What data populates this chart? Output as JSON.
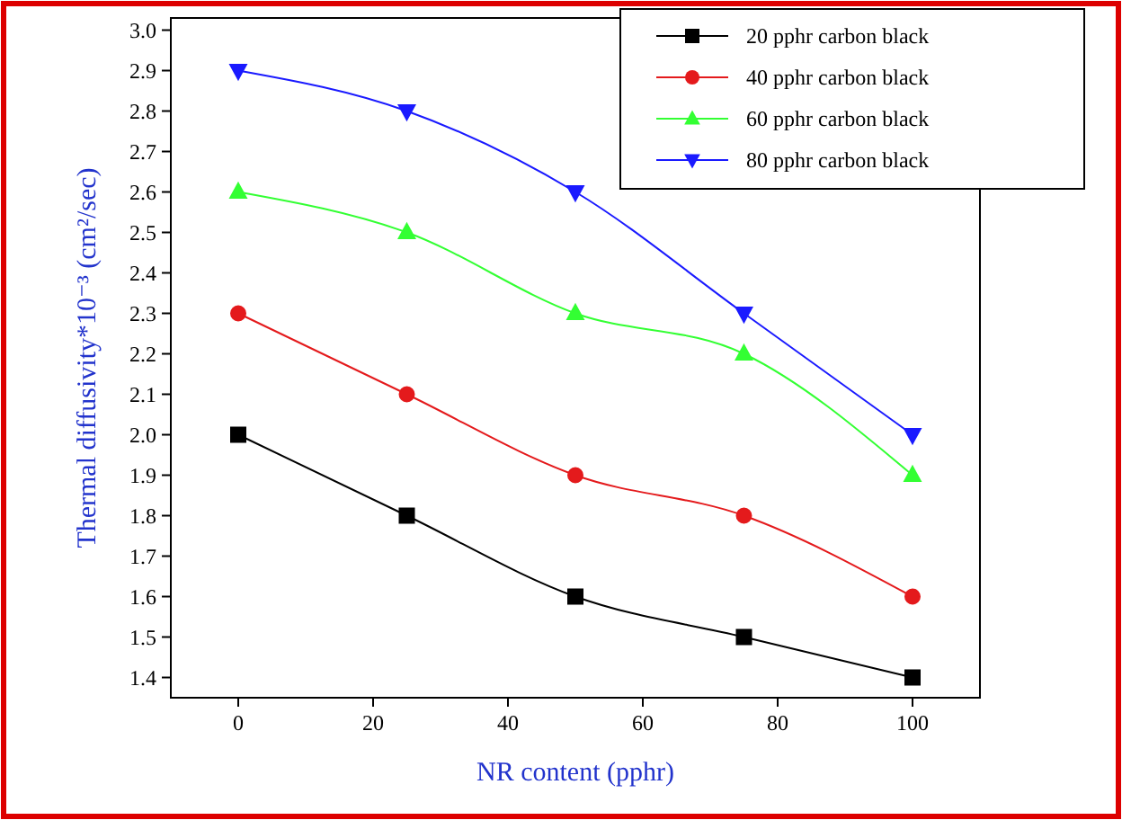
{
  "chart_data": {
    "type": "line",
    "xlabel": "NR content (pphr)",
    "ylabel": "Thermal diffusivity*10⁻³ (cm²/sec)",
    "x": [
      0,
      25,
      50,
      75,
      100
    ],
    "series": [
      {
        "name": "20 pphr carbon black",
        "color": "#000000",
        "marker": "square",
        "values": [
          2.0,
          1.8,
          1.6,
          1.5,
          1.4
        ]
      },
      {
        "name": "40 pphr carbon black",
        "color": "#e41a1c",
        "marker": "circle",
        "values": [
          2.3,
          2.1,
          1.9,
          1.8,
          1.6
        ]
      },
      {
        "name": "60 pphr carbon black",
        "color": "#33ff33",
        "marker": "triangle",
        "values": [
          2.6,
          2.5,
          2.3,
          2.2,
          1.9
        ]
      },
      {
        "name": "80 pphr carbon black",
        "color": "#1a1aff",
        "marker": "triangle-down",
        "values": [
          2.9,
          2.8,
          2.6,
          2.3,
          2.0
        ]
      }
    ],
    "xlim": [
      -10,
      110
    ],
    "xticks": [
      0,
      20,
      40,
      60,
      80,
      100
    ],
    "ylim": [
      1.35,
      3.03
    ],
    "yticks": [
      {
        "value": 1.4,
        "label": "1.4"
      },
      {
        "value": 1.5,
        "label": "1.5"
      },
      {
        "value": 1.6,
        "label": "1.6"
      },
      {
        "value": 1.7,
        "label": "1.7"
      },
      {
        "value": 1.8,
        "label": "1.8"
      },
      {
        "value": 1.9,
        "label": "1.9"
      },
      {
        "value": 2.0,
        "label": "2.0"
      },
      {
        "value": 2.1,
        "label": "2.1"
      },
      {
        "value": 2.2,
        "label": "2.2"
      },
      {
        "value": 2.3,
        "label": "2.3"
      },
      {
        "value": 2.4,
        "label": "2.4"
      },
      {
        "value": 2.5,
        "label": "2.5"
      },
      {
        "value": 2.6,
        "label": "2.6"
      },
      {
        "value": 2.7,
        "label": "2.7"
      },
      {
        "value": 2.8,
        "label": "2.8"
      },
      {
        "value": 2.9,
        "label": "2.9"
      },
      {
        "value": 3.0,
        "label": "3.0"
      }
    ],
    "legend": "top right",
    "grid": false,
    "line_style": "solid"
  }
}
